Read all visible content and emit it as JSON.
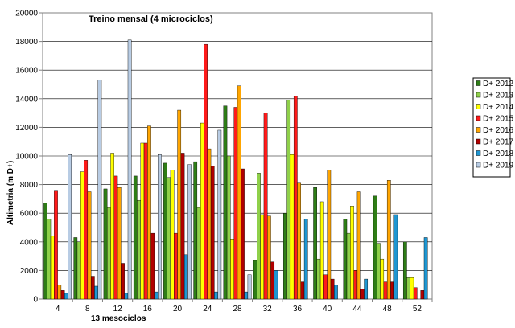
{
  "chart_data": {
    "type": "bar",
    "title": "Treino mensal (4 microciclos)",
    "xlabel": "13 mesociclos",
    "ylabel": "Altimetria (m D+)",
    "ylim": [
      0,
      20000
    ],
    "yticks": [
      0,
      2000,
      4000,
      6000,
      8000,
      10000,
      12000,
      14000,
      16000,
      18000,
      20000
    ],
    "grid": true,
    "legend_position": "right",
    "categories": [
      "4",
      "8",
      "12",
      "16",
      "20",
      "24",
      "28",
      "32",
      "36",
      "40",
      "44",
      "48",
      "52"
    ],
    "series": [
      {
        "name": "D+ 2012",
        "color": "#2e7d16",
        "values": [
          6700,
          4300,
          7700,
          8600,
          9500,
          9600,
          13500,
          2700,
          6000,
          7800,
          5600,
          7200,
          4000
        ]
      },
      {
        "name": "D+ 2013",
        "color": "#8fd04a",
        "values": [
          5600,
          4000,
          6400,
          6900,
          8500,
          6400,
          10000,
          8800,
          13900,
          2800,
          4600,
          3900,
          1500
        ]
      },
      {
        "name": "D+ 2014",
        "color": "#ffff00",
        "values": [
          4400,
          8900,
          10200,
          10900,
          9000,
          12300,
          4200,
          5900,
          10100,
          6800,
          6500,
          2800,
          1500
        ]
      },
      {
        "name": "D+ 2015",
        "color": "#ff1a1a",
        "values": [
          7600,
          9700,
          8600,
          10900,
          4600,
          17800,
          13400,
          13000,
          14200,
          1700,
          2000,
          1200,
          800
        ]
      },
      {
        "name": "D+ 2016",
        "color": "#ffa500",
        "values": [
          1000,
          7500,
          7800,
          12100,
          13200,
          10500,
          14900,
          5800,
          8100,
          9000,
          7500,
          8300,
          0
        ]
      },
      {
        "name": "D+ 2017",
        "color": "#b00000",
        "values": [
          600,
          1600,
          2500,
          4600,
          10200,
          9300,
          9100,
          2600,
          1200,
          1400,
          700,
          1200,
          600
        ]
      },
      {
        "name": "D+ 2018",
        "color": "#1e96d2",
        "values": [
          400,
          900,
          400,
          500,
          3100,
          500,
          500,
          2000,
          5600,
          1000,
          1400,
          5900,
          4300
        ]
      },
      {
        "name": "D+ 2019",
        "color": "#b8cce4",
        "values": [
          10100,
          15300,
          18100,
          10100,
          9400,
          11800,
          1700,
          0,
          0,
          0,
          0,
          0,
          0
        ]
      }
    ]
  }
}
